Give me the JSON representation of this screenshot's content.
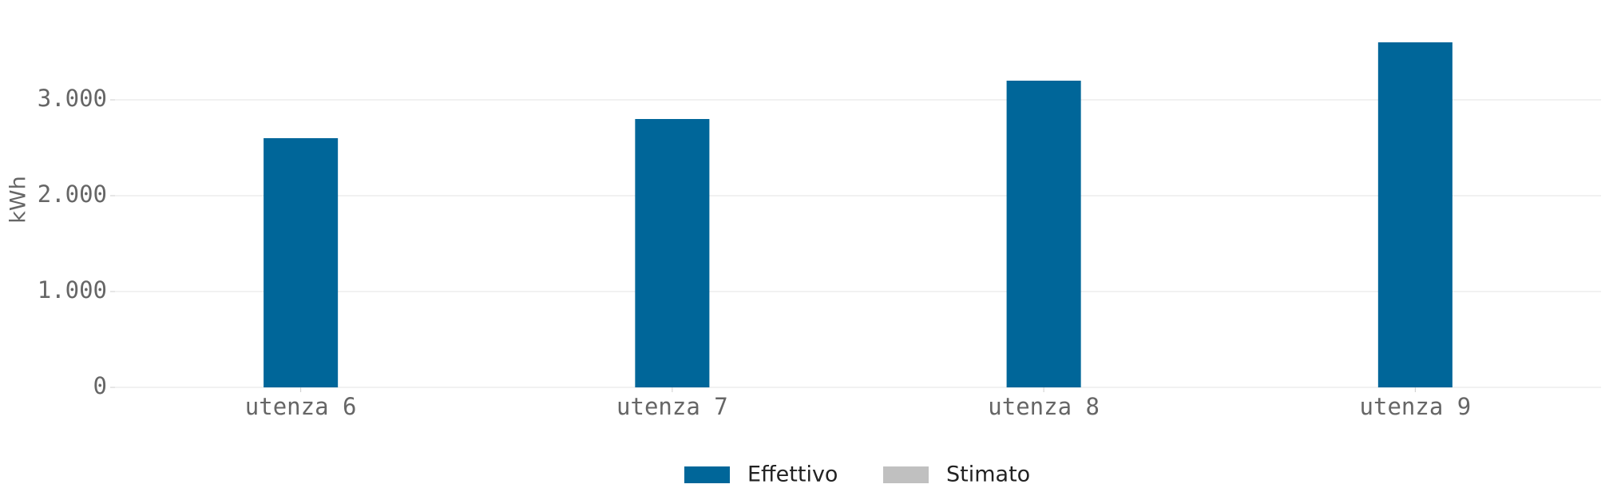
{
  "chart_data": {
    "type": "bar",
    "y_label": "kWh",
    "categories": [
      "utenza 6",
      "utenza 7",
      "utenza 8",
      "utenza 9"
    ],
    "series": [
      {
        "name": "Effettivo",
        "color": "#006699",
        "values": [
          2600,
          2800,
          3200,
          3600
        ]
      },
      {
        "name": "Stimato",
        "color": "#c0c0c0",
        "values": [
          null,
          null,
          null,
          null
        ]
      }
    ],
    "ylim": [
      0,
      3600
    ],
    "yticks": [
      0,
      {
        "value": 1000,
        "label": "1.000"
      },
      {
        "value": 2000,
        "label": "2.000"
      },
      {
        "value": 3000,
        "label": "3.000"
      }
    ],
    "grid": true,
    "legend": "bottom"
  }
}
